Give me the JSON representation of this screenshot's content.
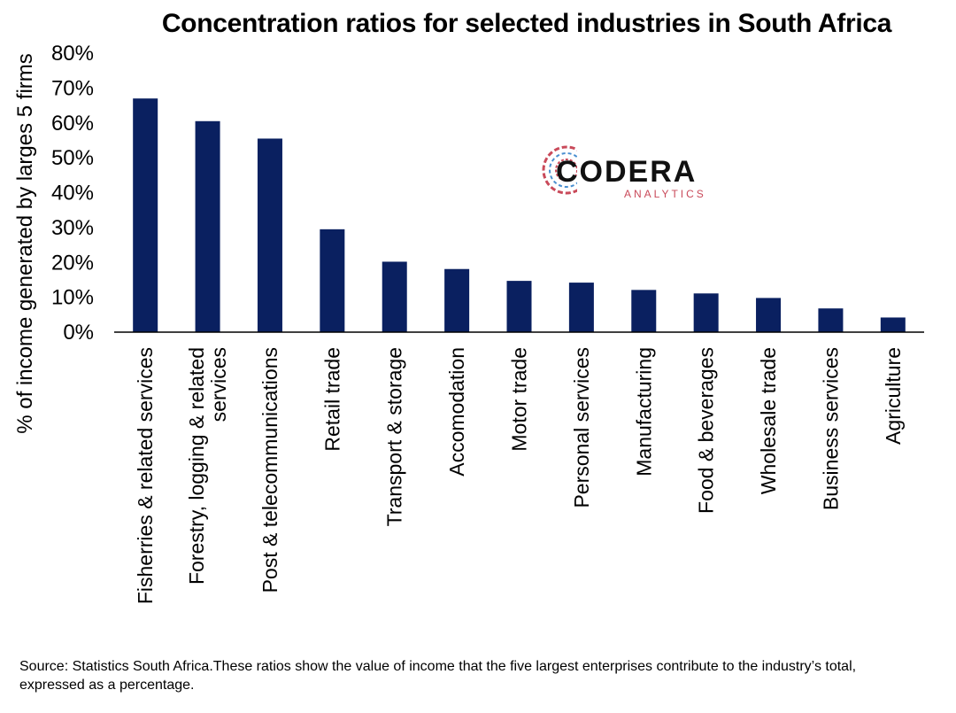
{
  "chart_data": {
    "type": "bar",
    "title": "Concentration ratios for selected industries in South Africa",
    "ylabel": "% of income generated by larges 5 firms",
    "xlabel": "",
    "ylim": [
      0,
      80
    ],
    "yticks": [
      "0%",
      "10%",
      "20%",
      "30%",
      "40%",
      "50%",
      "60%",
      "70%",
      "80%"
    ],
    "categories": [
      [
        "Fisherries & related services"
      ],
      [
        "Forestry, logging & related",
        "services"
      ],
      [
        "Post & telecommunications"
      ],
      [
        "Retail trade"
      ],
      [
        "Transport & storage"
      ],
      [
        "Accomodation"
      ],
      [
        "Motor trade"
      ],
      [
        "Personal services"
      ],
      [
        "Manufacturing"
      ],
      [
        "Food & beverages"
      ],
      [
        "Wholesale trade"
      ],
      [
        "Business services"
      ],
      [
        "Agriculture"
      ]
    ],
    "values": [
      67,
      60.5,
      55.5,
      29.5,
      20.2,
      18.1,
      14.7,
      14.2,
      12.1,
      11.1,
      9.8,
      6.8,
      4.2
    ],
    "bar_color": "#0a2060",
    "grid": false,
    "legend": "none"
  },
  "logo": {
    "name": "CODERA",
    "tagline": "ANALYTICS",
    "colors": [
      "#c94a5a",
      "#4a8fd0",
      "#111111"
    ]
  },
  "source_note": "Source: Statistics South Africa.These ratios show the value of income that the five largest enterprises contribute to the industry’s total, expressed as a percentage."
}
